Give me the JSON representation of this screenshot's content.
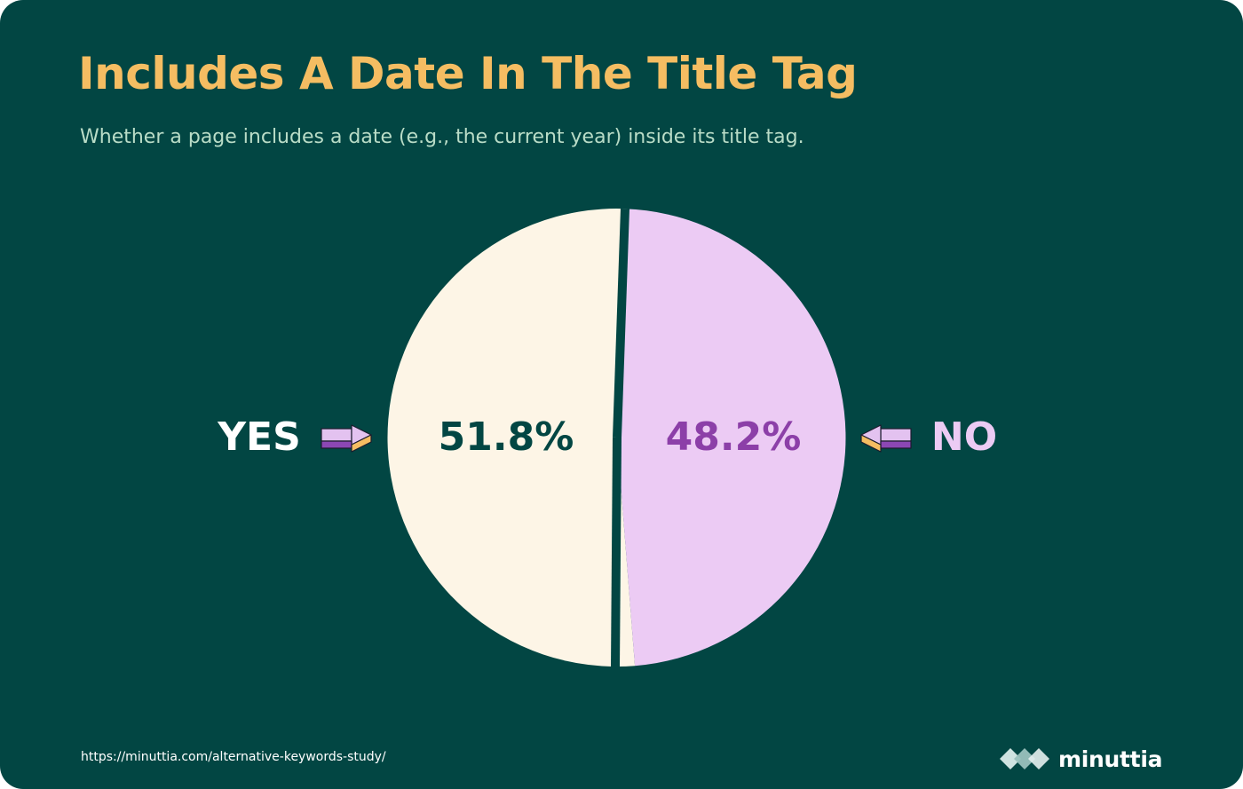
{
  "title": "Includes A Date In The Title Tag",
  "subtitle": "Whether a page includes a date (e.g., the current year) inside its title tag.",
  "source_url": "https://minuttia.com/alternative-keywords-study/",
  "brand": {
    "name": "minuttia",
    "icon": "diamond-cluster-logo-icon"
  },
  "colors": {
    "background": "#024643",
    "title": "#f5bd62",
    "subtitle": "#b9dcc7",
    "yes_slice": "#fdf5e6",
    "no_slice": "#eccbf4",
    "yes_value_text": "#024643",
    "no_value_text": "#8c3fa8",
    "yes_label": "#ffffff",
    "no_label": "#eccbf4",
    "arrow_purple": "#8c47b4",
    "arrow_light_purple": "#e3c2f0",
    "arrow_orange": "#f5bd62"
  },
  "chart_data": {
    "type": "pie",
    "slices": [
      {
        "label": "YES",
        "value": 51.8,
        "value_label": "51.8%"
      },
      {
        "label": "NO",
        "value": 48.2,
        "value_label": "48.2%"
      }
    ]
  }
}
